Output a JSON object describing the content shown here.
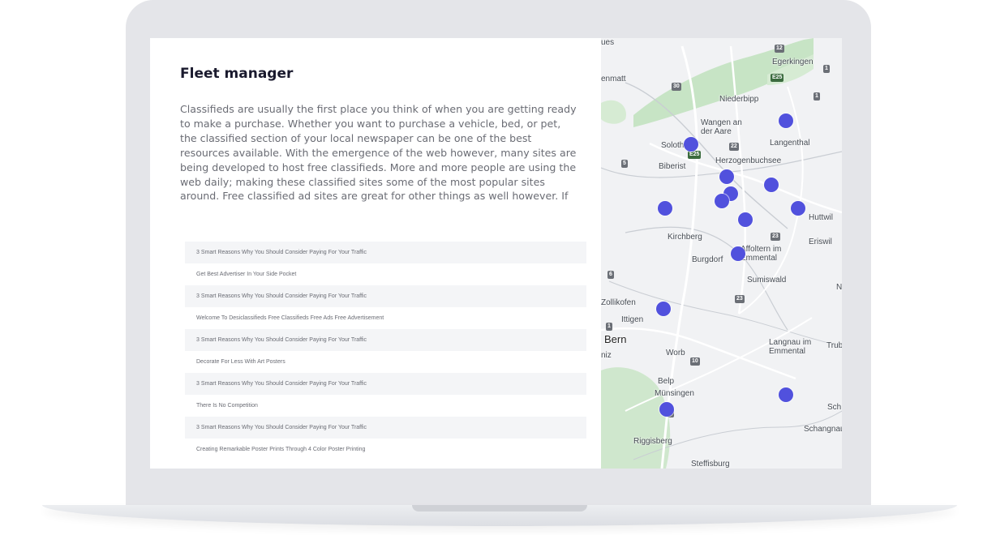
{
  "panel": {
    "title": "Fleet manager",
    "description": "Classifieds are usually the first place you think of when you are getting ready to make a purchase. Whether you want to purchase a vehicle, bed, or pet, the classified section of your local newspaper can be one of the best resources available. With the emergence of the web however, many sites are being developed to host free classifieds. More and more people are using the web daily; making these classified sites some of the most popular sites around. Free classified ad sites are great for other things as well however. If you are an owner of a business, you can use these sites to advertise your products and services.",
    "list_items": [
      "3 Smart Reasons Why You Should Consider Paying For Your Traffic",
      "Get Best Advertiser In Your Side Pocket",
      "3 Smart Reasons Why You Should Consider Paying For Your Traffic",
      "Welcome To Desiclassifieds Free Classifieds Free Ads Free Advertisement",
      "3 Smart Reasons Why You Should Consider Paying For Your Traffic",
      "Decorate For Less With Art Posters",
      "3 Smart Reasons Why You Should Consider Paying For Your Traffic",
      "There Is No Competition",
      "3 Smart Reasons Why You Should Consider Paying For Your Traffic",
      "Creating Remarkable Poster Prints Through 4 Color Poster Printing"
    ]
  },
  "map": {
    "marker_color": "#5151dd",
    "places": [
      "ues",
      "Egerkingen",
      "enmatt",
      "Niederbipp",
      "Wangen an der Aare",
      "Langenthal",
      "Solothurn",
      "Herzogenbuchsee",
      "Biberist",
      "Huttwil",
      "Kirchberg",
      "Eriswil",
      "Burgdorf",
      "Affoltern im Emmental",
      "Sumiswald",
      "Zollikofen",
      "Ittigen",
      "Bern",
      "niz",
      "Worb",
      "Langnau im Emmental",
      "Trub",
      "Belp",
      "Münsingen",
      "Sch",
      "Schangnau",
      "Riggisberg",
      "Steffisburg",
      "N"
    ],
    "route_shields": [
      "12",
      "1",
      "E25",
      "30",
      "1",
      "22",
      "5",
      "E25",
      "23",
      "6",
      "23",
      "1",
      "10",
      "6"
    ]
  }
}
